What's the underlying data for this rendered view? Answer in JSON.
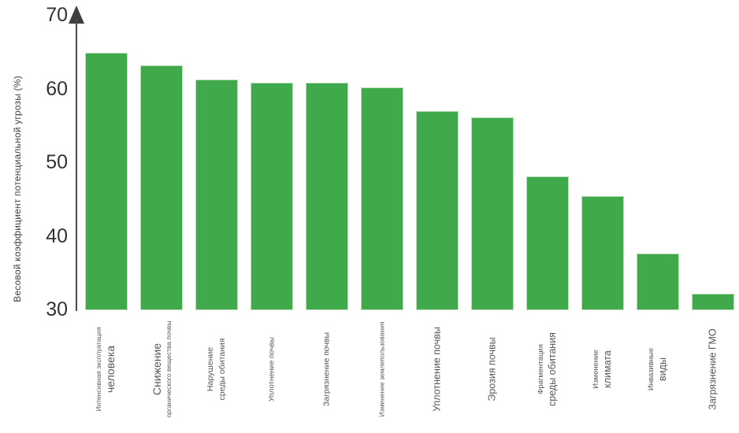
{
  "chart_data": {
    "type": "bar",
    "title": "",
    "xlabel": "",
    "ylabel": "Весовой коэффициент потенциальной угрозы (%)",
    "ylim": [
      30,
      70
    ],
    "yticks": [
      30,
      40,
      50,
      60,
      70
    ],
    "grid": false,
    "legend": "none",
    "bar_color": "#3FA94C",
    "axis_color": "#4a4a4a",
    "tick_label_color": "#333333",
    "category_label_color": "#575757",
    "categories": [
      {
        "lines": [
          {
            "text": "Интенсивная эксплуатация",
            "size": "xs"
          },
          {
            "text": "человека",
            "size": "xl"
          }
        ]
      },
      {
        "lines": [
          {
            "text": "Снижение",
            "size": "xl"
          },
          {
            "text": "органического вещества почвы",
            "size": "xs"
          }
        ]
      },
      {
        "lines": [
          {
            "text": "Нарушение",
            "size": "md"
          },
          {
            "text": "среды обитания",
            "size": "md"
          }
        ]
      },
      {
        "lines": [
          {
            "text": "Уплотнение почвы",
            "size": "sm"
          }
        ]
      },
      {
        "lines": [
          {
            "text": "Загрязнение почвы",
            "size": "md"
          }
        ]
      },
      {
        "lines": [
          {
            "text": "Изменение землепользования",
            "size": "xs"
          }
        ]
      },
      {
        "lines": [
          {
            "text": "Уплотнение почвы",
            "size": "lg"
          }
        ]
      },
      {
        "lines": [
          {
            "text": "Эрозия почвы",
            "size": "lg"
          }
        ]
      },
      {
        "lines": [
          {
            "text": "Фрагментация",
            "size": "sm"
          },
          {
            "text": "среды обитания",
            "size": "lg"
          }
        ]
      },
      {
        "lines": [
          {
            "text": "Изменение",
            "size": "sm"
          },
          {
            "text": "климата",
            "size": "lg"
          }
        ]
      },
      {
        "lines": [
          {
            "text": "Инвазивные",
            "size": "sm"
          },
          {
            "text": "виды",
            "size": "lg"
          }
        ]
      },
      {
        "lines": [
          {
            "text": "Загрязнение ГМО",
            "size": "lg"
          }
        ]
      }
    ],
    "values": [
      65.0,
      63.3,
      61.3,
      60.9,
      60.9,
      60.3,
      57.1,
      56.2,
      48.2,
      45.5,
      37.7,
      32.2
    ]
  }
}
